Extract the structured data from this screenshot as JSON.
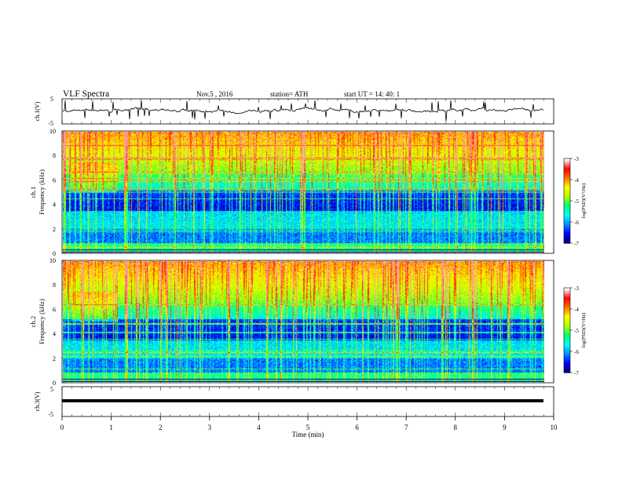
{
  "header": {
    "title": "VLF  Spectra",
    "date": "Nov.5  , 2016",
    "station": "station= ATH",
    "start_ut": "start  UT  =   14: 40: 1"
  },
  "colors": {
    "spectrum": [
      "#000070",
      "#0000ff",
      "#0090ff",
      "#00ffff",
      "#00ff70",
      "#b0ff00",
      "#ffff00",
      "#ff7000",
      "#ff0000",
      "#ffffff"
    ],
    "trace": "#000000"
  },
  "chart_data": [
    {
      "type": "line",
      "id": "ch1",
      "ylabel": "ch.1(V)",
      "yticks": [
        "5",
        "-5"
      ],
      "ylim": [
        -5,
        5
      ],
      "xlim": [
        0,
        10
      ],
      "note_level_v": 0.0
    },
    {
      "type": "heatmap",
      "id": "ch1-spectrogram",
      "ylabel": "ch.1\nFrequency (kHz)",
      "ylabel_lines": [
        "ch.1",
        "Frequency (kHz)"
      ],
      "yticks": [
        "0",
        "2",
        "4",
        "6",
        "8",
        "10"
      ],
      "ylim": [
        0,
        10
      ],
      "xlim": [
        0,
        10
      ],
      "data_end_min": 9.8,
      "colorbar": {
        "label": "log(PSD)(V²/Hz)",
        "ticks": [
          "-3",
          "-4",
          "-5",
          "-6",
          "-7"
        ],
        "range": [
          -7,
          -3
        ]
      }
    },
    {
      "type": "heatmap",
      "id": "ch2-spectrogram",
      "ylabel": "ch.2\nFrequency (kHz)",
      "ylabel_lines": [
        "ch.2",
        "Frequency (kHz)"
      ],
      "yticks": [
        "0",
        "2",
        "4",
        "6",
        "8",
        "10"
      ],
      "ylim": [
        0,
        10
      ],
      "xlim": [
        0,
        10
      ],
      "data_end_min": 9.8,
      "colorbar": {
        "label": "log(PSD)(V²/Hz)",
        "ticks": [
          "-3",
          "-4",
          "-5",
          "-6",
          "-7"
        ],
        "range": [
          -7,
          -3
        ]
      }
    },
    {
      "type": "line",
      "id": "ch3",
      "ylabel": "ch.3(V)",
      "yticks": [
        "5",
        "-5"
      ],
      "ylim": [
        -5,
        5
      ],
      "xlim": [
        0,
        10
      ],
      "note_level_v": 0.0
    }
  ],
  "xaxis": {
    "label": "Time  (min)",
    "ticks": [
      "0",
      "1",
      "2",
      "3",
      "4",
      "5",
      "6",
      "7",
      "8",
      "9",
      "10"
    ]
  }
}
